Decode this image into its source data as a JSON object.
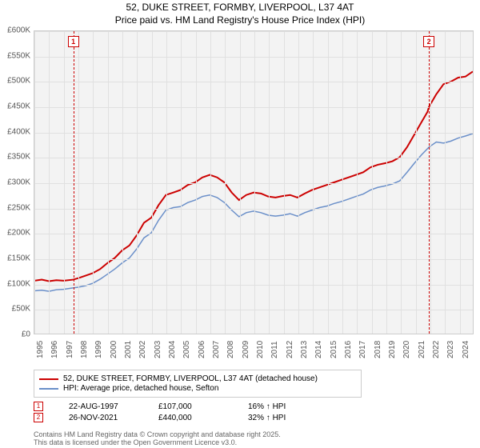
{
  "title": {
    "line1": "52, DUKE STREET, FORMBY, LIVERPOOL, L37 4AT",
    "line2": "Price paid vs. HM Land Registry's House Price Index (HPI)"
  },
  "chart": {
    "type": "line",
    "background_color": "#f3f3f3",
    "grid_color": "#e0e0e0",
    "ylim": [
      0,
      600000
    ],
    "ytick_step": 50000,
    "y_ticks": [
      "£0",
      "£50K",
      "£100K",
      "£150K",
      "£200K",
      "£250K",
      "£300K",
      "£350K",
      "£400K",
      "£450K",
      "£500K",
      "£550K",
      "£600K"
    ],
    "xlim": [
      1995,
      2025
    ],
    "x_ticks": [
      1995,
      1996,
      1997,
      1998,
      1999,
      2000,
      2001,
      2002,
      2003,
      2004,
      2005,
      2006,
      2007,
      2008,
      2009,
      2010,
      2011,
      2012,
      2013,
      2014,
      2015,
      2016,
      2017,
      2018,
      2019,
      2020,
      2021,
      2022,
      2023,
      2024
    ],
    "series": [
      {
        "name": "52, DUKE STREET, FORMBY, LIVERPOOL, L37 4AT (detached house)",
        "color": "#cc0000",
        "width": 2,
        "data": [
          [
            1995,
            105000
          ],
          [
            1995.5,
            107000
          ],
          [
            1996,
            104000
          ],
          [
            1996.5,
            106000
          ],
          [
            1997,
            105000
          ],
          [
            1997.65,
            107000
          ],
          [
            1998,
            110000
          ],
          [
            1998.5,
            115000
          ],
          [
            1999,
            120000
          ],
          [
            1999.5,
            128000
          ],
          [
            2000,
            140000
          ],
          [
            2000.5,
            150000
          ],
          [
            2001,
            165000
          ],
          [
            2001.5,
            175000
          ],
          [
            2002,
            195000
          ],
          [
            2002.5,
            220000
          ],
          [
            2003,
            230000
          ],
          [
            2003.5,
            255000
          ],
          [
            2004,
            275000
          ],
          [
            2004.5,
            280000
          ],
          [
            2005,
            285000
          ],
          [
            2005.5,
            295000
          ],
          [
            2006,
            300000
          ],
          [
            2006.5,
            310000
          ],
          [
            2007,
            315000
          ],
          [
            2007.5,
            310000
          ],
          [
            2008,
            300000
          ],
          [
            2008.5,
            280000
          ],
          [
            2009,
            265000
          ],
          [
            2009.5,
            275000
          ],
          [
            2010,
            280000
          ],
          [
            2010.5,
            278000
          ],
          [
            2011,
            272000
          ],
          [
            2011.5,
            270000
          ],
          [
            2012,
            273000
          ],
          [
            2012.5,
            275000
          ],
          [
            2013,
            270000
          ],
          [
            2013.5,
            278000
          ],
          [
            2014,
            285000
          ],
          [
            2014.5,
            290000
          ],
          [
            2015,
            295000
          ],
          [
            2015.5,
            300000
          ],
          [
            2016,
            305000
          ],
          [
            2016.5,
            310000
          ],
          [
            2017,
            315000
          ],
          [
            2017.5,
            320000
          ],
          [
            2018,
            330000
          ],
          [
            2018.5,
            335000
          ],
          [
            2019,
            338000
          ],
          [
            2019.5,
            342000
          ],
          [
            2020,
            350000
          ],
          [
            2020.5,
            370000
          ],
          [
            2021,
            395000
          ],
          [
            2021.5,
            420000
          ],
          [
            2021.9,
            440000
          ],
          [
            2022,
            450000
          ],
          [
            2022.5,
            475000
          ],
          [
            2023,
            495000
          ],
          [
            2023.5,
            500000
          ],
          [
            2024,
            508000
          ],
          [
            2024.5,
            510000
          ],
          [
            2025,
            520000
          ]
        ]
      },
      {
        "name": "HPI: Average price, detached house, Sefton",
        "color": "#6a8fc9",
        "width": 1.5,
        "data": [
          [
            1995,
            85000
          ],
          [
            1995.5,
            86000
          ],
          [
            1996,
            84000
          ],
          [
            1996.5,
            87000
          ],
          [
            1997,
            88000
          ],
          [
            1997.5,
            90000
          ],
          [
            1998,
            92000
          ],
          [
            1998.5,
            95000
          ],
          [
            1999,
            100000
          ],
          [
            1999.5,
            108000
          ],
          [
            2000,
            118000
          ],
          [
            2000.5,
            128000
          ],
          [
            2001,
            140000
          ],
          [
            2001.5,
            150000
          ],
          [
            2002,
            168000
          ],
          [
            2002.5,
            190000
          ],
          [
            2003,
            200000
          ],
          [
            2003.5,
            225000
          ],
          [
            2004,
            245000
          ],
          [
            2004.5,
            250000
          ],
          [
            2005,
            252000
          ],
          [
            2005.5,
            260000
          ],
          [
            2006,
            265000
          ],
          [
            2006.5,
            272000
          ],
          [
            2007,
            275000
          ],
          [
            2007.5,
            270000
          ],
          [
            2008,
            260000
          ],
          [
            2008.5,
            245000
          ],
          [
            2009,
            232000
          ],
          [
            2009.5,
            240000
          ],
          [
            2010,
            243000
          ],
          [
            2010.5,
            240000
          ],
          [
            2011,
            235000
          ],
          [
            2011.5,
            233000
          ],
          [
            2012,
            235000
          ],
          [
            2012.5,
            238000
          ],
          [
            2013,
            233000
          ],
          [
            2013.5,
            240000
          ],
          [
            2014,
            245000
          ],
          [
            2014.5,
            250000
          ],
          [
            2015,
            253000
          ],
          [
            2015.5,
            258000
          ],
          [
            2016,
            262000
          ],
          [
            2016.5,
            267000
          ],
          [
            2017,
            272000
          ],
          [
            2017.5,
            277000
          ],
          [
            2018,
            285000
          ],
          [
            2018.5,
            290000
          ],
          [
            2019,
            293000
          ],
          [
            2019.5,
            297000
          ],
          [
            2020,
            303000
          ],
          [
            2020.5,
            320000
          ],
          [
            2021,
            338000
          ],
          [
            2021.5,
            355000
          ],
          [
            2022,
            370000
          ],
          [
            2022.5,
            380000
          ],
          [
            2023,
            378000
          ],
          [
            2023.5,
            382000
          ],
          [
            2024,
            388000
          ],
          [
            2024.5,
            392000
          ],
          [
            2025,
            397000
          ]
        ]
      }
    ],
    "sale_markers": [
      {
        "num": "1",
        "x": 1997.65
      },
      {
        "num": "2",
        "x": 2021.9
      }
    ],
    "marker_color": "#cc0000"
  },
  "legend": {
    "rows": [
      {
        "color": "#cc0000",
        "label": "52, DUKE STREET, FORMBY, LIVERPOOL, L37 4AT (detached house)"
      },
      {
        "color": "#6a8fc9",
        "label": "HPI: Average price, detached house, Sefton"
      }
    ]
  },
  "data_points": [
    {
      "num": "1",
      "date": "22-AUG-1997",
      "price": "£107,000",
      "change": "16% ↑ HPI"
    },
    {
      "num": "2",
      "date": "26-NOV-2021",
      "price": "£440,000",
      "change": "32% ↑ HPI"
    }
  ],
  "footer": {
    "line1": "Contains HM Land Registry data © Crown copyright and database right 2025.",
    "line2": "This data is licensed under the Open Government Licence v3.0."
  }
}
